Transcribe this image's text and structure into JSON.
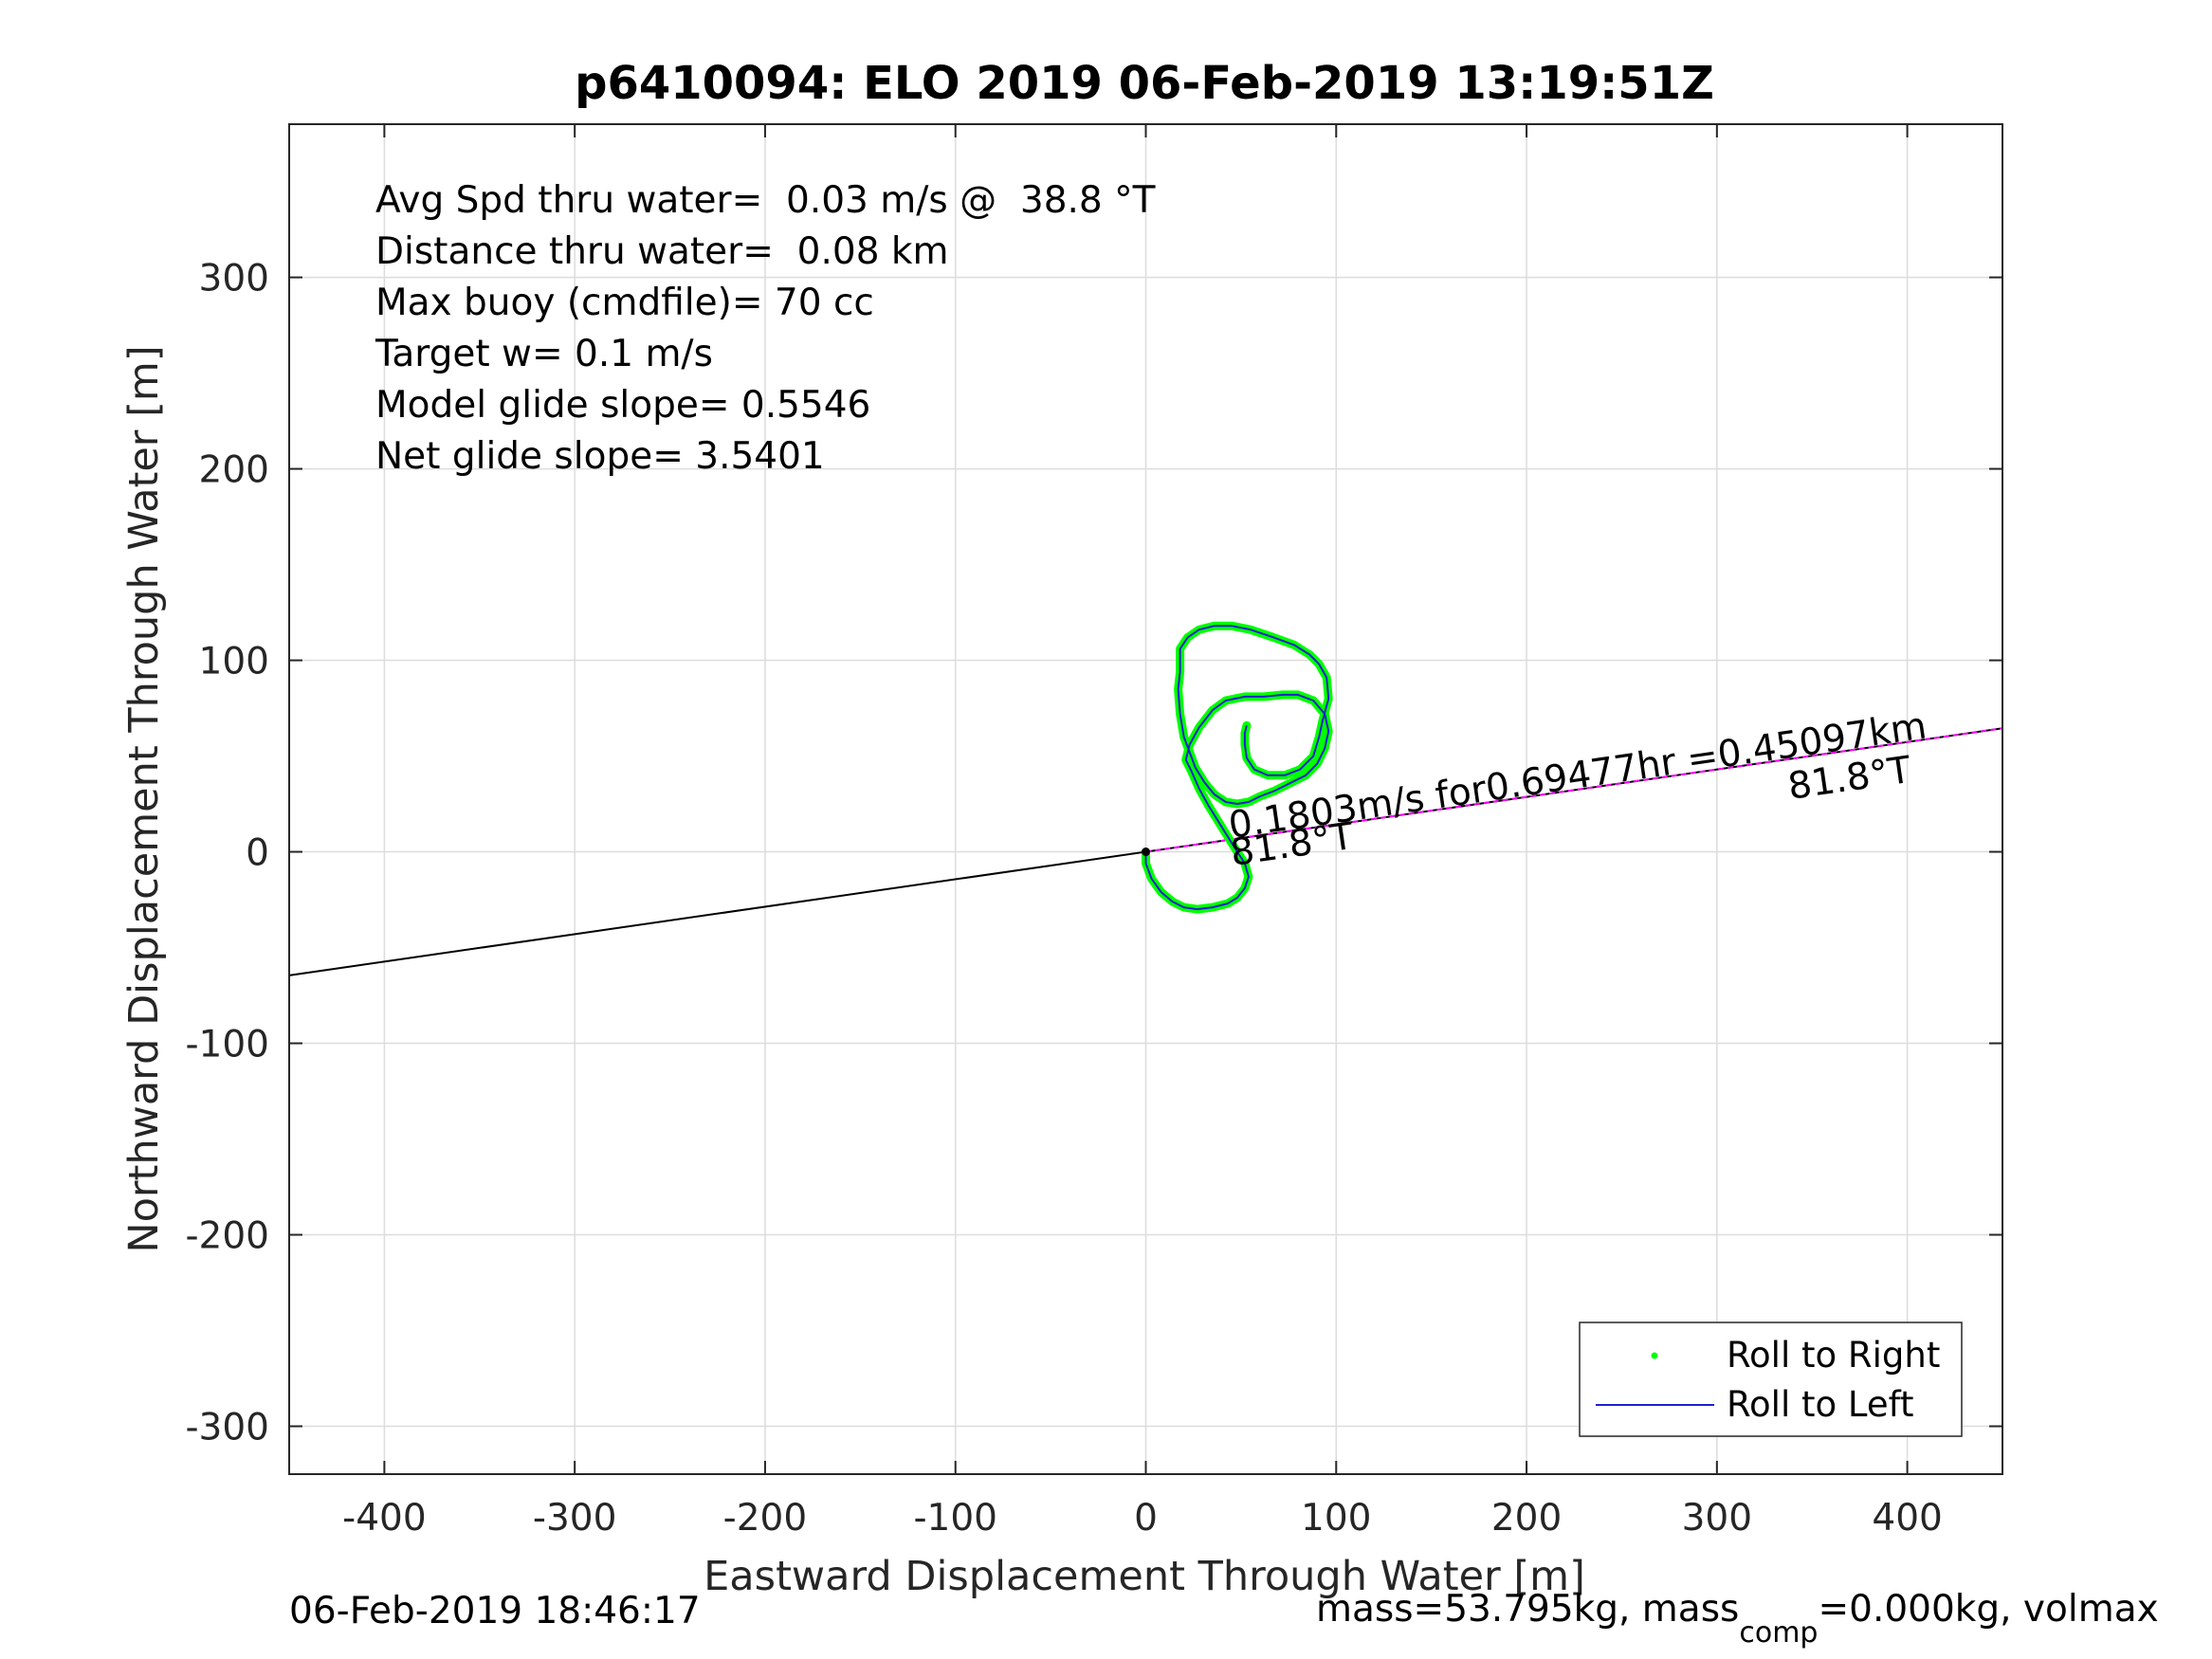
{
  "chart_data": {
    "type": "line",
    "title": "p6410094: ELO 2019 06-Feb-2019 13:19:51Z",
    "xlabel": "Eastward Displacement Through Water [m]",
    "ylabel": "Northward Displacement Through Water [m]",
    "xlim": [
      -450,
      450
    ],
    "ylim": [
      -325,
      380
    ],
    "xticks": [
      -400,
      -300,
      -200,
      -100,
      0,
      100,
      200,
      300,
      400
    ],
    "yticks": [
      -300,
      -200,
      -100,
      0,
      100,
      200,
      300
    ],
    "xtick_labels": [
      "-400",
      "-300",
      "-200",
      "-100",
      "0",
      "100",
      "200",
      "300",
      "400"
    ],
    "ytick_labels": [
      "-300",
      "-200",
      "-100",
      "0",
      "100",
      "200",
      "300"
    ],
    "grid": true,
    "legend_position": "bottom-right",
    "info_lines": [
      "Avg Spd thru water=  0.03 m/s @  38.8 °T",
      "Distance thru water=  0.08 km",
      "Max buoy (cmdfile)= 70 cc",
      "Target w= 0.1 m/s",
      "Model glide slope= 0.5546",
      "Net glide slope= 3.5401"
    ],
    "annotations": {
      "current_label": "0.1803m/s for0.69477hr =0.45097km",
      "heading_near": "81.8°T",
      "heading_far": "81.8°T"
    },
    "series": [
      {
        "name": "Roll to Right",
        "color": "#00ff00",
        "style": "dots",
        "points": [
          [
            0,
            0
          ],
          [
            0,
            -6
          ],
          [
            3,
            -14
          ],
          [
            8,
            -21
          ],
          [
            14,
            -26
          ],
          [
            20,
            -29
          ],
          [
            27,
            -30
          ],
          [
            35,
            -29
          ],
          [
            43,
            -27
          ],
          [
            48,
            -24
          ],
          [
            52,
            -19
          ],
          [
            54,
            -13
          ],
          [
            52,
            -6
          ],
          [
            48,
            0
          ],
          [
            43,
            8
          ],
          [
            38,
            16
          ],
          [
            33,
            24
          ],
          [
            28,
            33
          ],
          [
            24,
            42
          ],
          [
            21,
            48
          ],
          [
            23,
            56
          ],
          [
            28,
            65
          ],
          [
            35,
            74
          ],
          [
            42,
            79
          ],
          [
            52,
            81
          ],
          [
            62,
            81
          ],
          [
            72,
            82
          ],
          [
            80,
            82
          ],
          [
            88,
            79
          ],
          [
            94,
            72
          ],
          [
            96,
            63
          ],
          [
            94,
            54
          ],
          [
            90,
            46
          ],
          [
            84,
            40
          ],
          [
            76,
            36
          ],
          [
            68,
            32
          ],
          [
            60,
            29
          ],
          [
            54,
            26
          ],
          [
            48,
            25
          ],
          [
            42,
            26
          ],
          [
            36,
            30
          ],
          [
            31,
            36
          ],
          [
            26,
            44
          ],
          [
            23,
            52
          ],
          [
            20,
            60
          ],
          [
            18,
            72
          ],
          [
            17,
            85
          ],
          [
            18,
            94
          ],
          [
            18,
            106
          ],
          [
            22,
            112
          ],
          [
            28,
            116
          ],
          [
            36,
            118
          ],
          [
            45,
            118
          ],
          [
            55,
            116
          ],
          [
            67,
            112
          ],
          [
            78,
            108
          ],
          [
            86,
            103
          ],
          [
            91,
            98
          ],
          [
            95,
            91
          ],
          [
            96,
            80
          ],
          [
            93,
            69
          ],
          [
            91,
            60
          ],
          [
            88,
            50
          ],
          [
            81,
            43
          ],
          [
            73,
            40
          ],
          [
            64,
            40
          ],
          [
            57,
            43
          ],
          [
            53,
            49
          ],
          [
            52,
            56
          ],
          [
            52,
            62
          ],
          [
            53,
            66
          ]
        ]
      },
      {
        "name": "Roll to Left",
        "color": "#1f1fcf",
        "style": "line",
        "points": [
          [
            0,
            0
          ],
          [
            0,
            -6
          ],
          [
            3,
            -14
          ],
          [
            8,
            -21
          ],
          [
            14,
            -26
          ],
          [
            20,
            -29
          ],
          [
            27,
            -30
          ],
          [
            35,
            -29
          ],
          [
            43,
            -27
          ],
          [
            48,
            -24
          ],
          [
            52,
            -19
          ],
          [
            54,
            -13
          ],
          [
            52,
            -6
          ],
          [
            48,
            0
          ],
          [
            43,
            8
          ],
          [
            38,
            16
          ],
          [
            33,
            24
          ],
          [
            28,
            33
          ],
          [
            24,
            42
          ],
          [
            21,
            48
          ],
          [
            23,
            56
          ],
          [
            28,
            65
          ],
          [
            35,
            74
          ],
          [
            42,
            79
          ],
          [
            52,
            81
          ],
          [
            62,
            81
          ],
          [
            72,
            82
          ],
          [
            80,
            82
          ],
          [
            88,
            79
          ],
          [
            94,
            72
          ],
          [
            96,
            63
          ],
          [
            94,
            54
          ],
          [
            90,
            46
          ],
          [
            84,
            40
          ],
          [
            76,
            36
          ],
          [
            68,
            32
          ],
          [
            60,
            29
          ],
          [
            54,
            26
          ],
          [
            48,
            25
          ],
          [
            42,
            26
          ],
          [
            36,
            30
          ],
          [
            31,
            36
          ],
          [
            26,
            44
          ],
          [
            23,
            52
          ],
          [
            20,
            60
          ],
          [
            18,
            72
          ],
          [
            17,
            85
          ],
          [
            18,
            94
          ],
          [
            18,
            106
          ],
          [
            22,
            112
          ],
          [
            28,
            116
          ],
          [
            36,
            118
          ],
          [
            45,
            118
          ],
          [
            55,
            116
          ],
          [
            67,
            112
          ],
          [
            78,
            108
          ],
          [
            86,
            103
          ],
          [
            91,
            98
          ],
          [
            95,
            91
          ],
          [
            96,
            80
          ],
          [
            93,
            69
          ],
          [
            91,
            60
          ],
          [
            88,
            50
          ],
          [
            81,
            43
          ],
          [
            73,
            40
          ],
          [
            64,
            40
          ],
          [
            57,
            43
          ],
          [
            53,
            49
          ],
          [
            52,
            56
          ],
          [
            52,
            62
          ],
          [
            53,
            66
          ]
        ]
      }
    ],
    "black_line": [
      [
        -450,
        -64.5
      ],
      [
        450,
        64.5
      ]
    ],
    "magenta_line": [
      [
        0,
        0
      ],
      [
        450,
        64.5
      ]
    ]
  },
  "footer": {
    "datetime": "06-Feb-2019 18:46:17",
    "mass_prefix": "mass=53.795kg, mass",
    "mass_sub": "comp",
    "mass_suffix": "=0.000kg, volmax"
  }
}
